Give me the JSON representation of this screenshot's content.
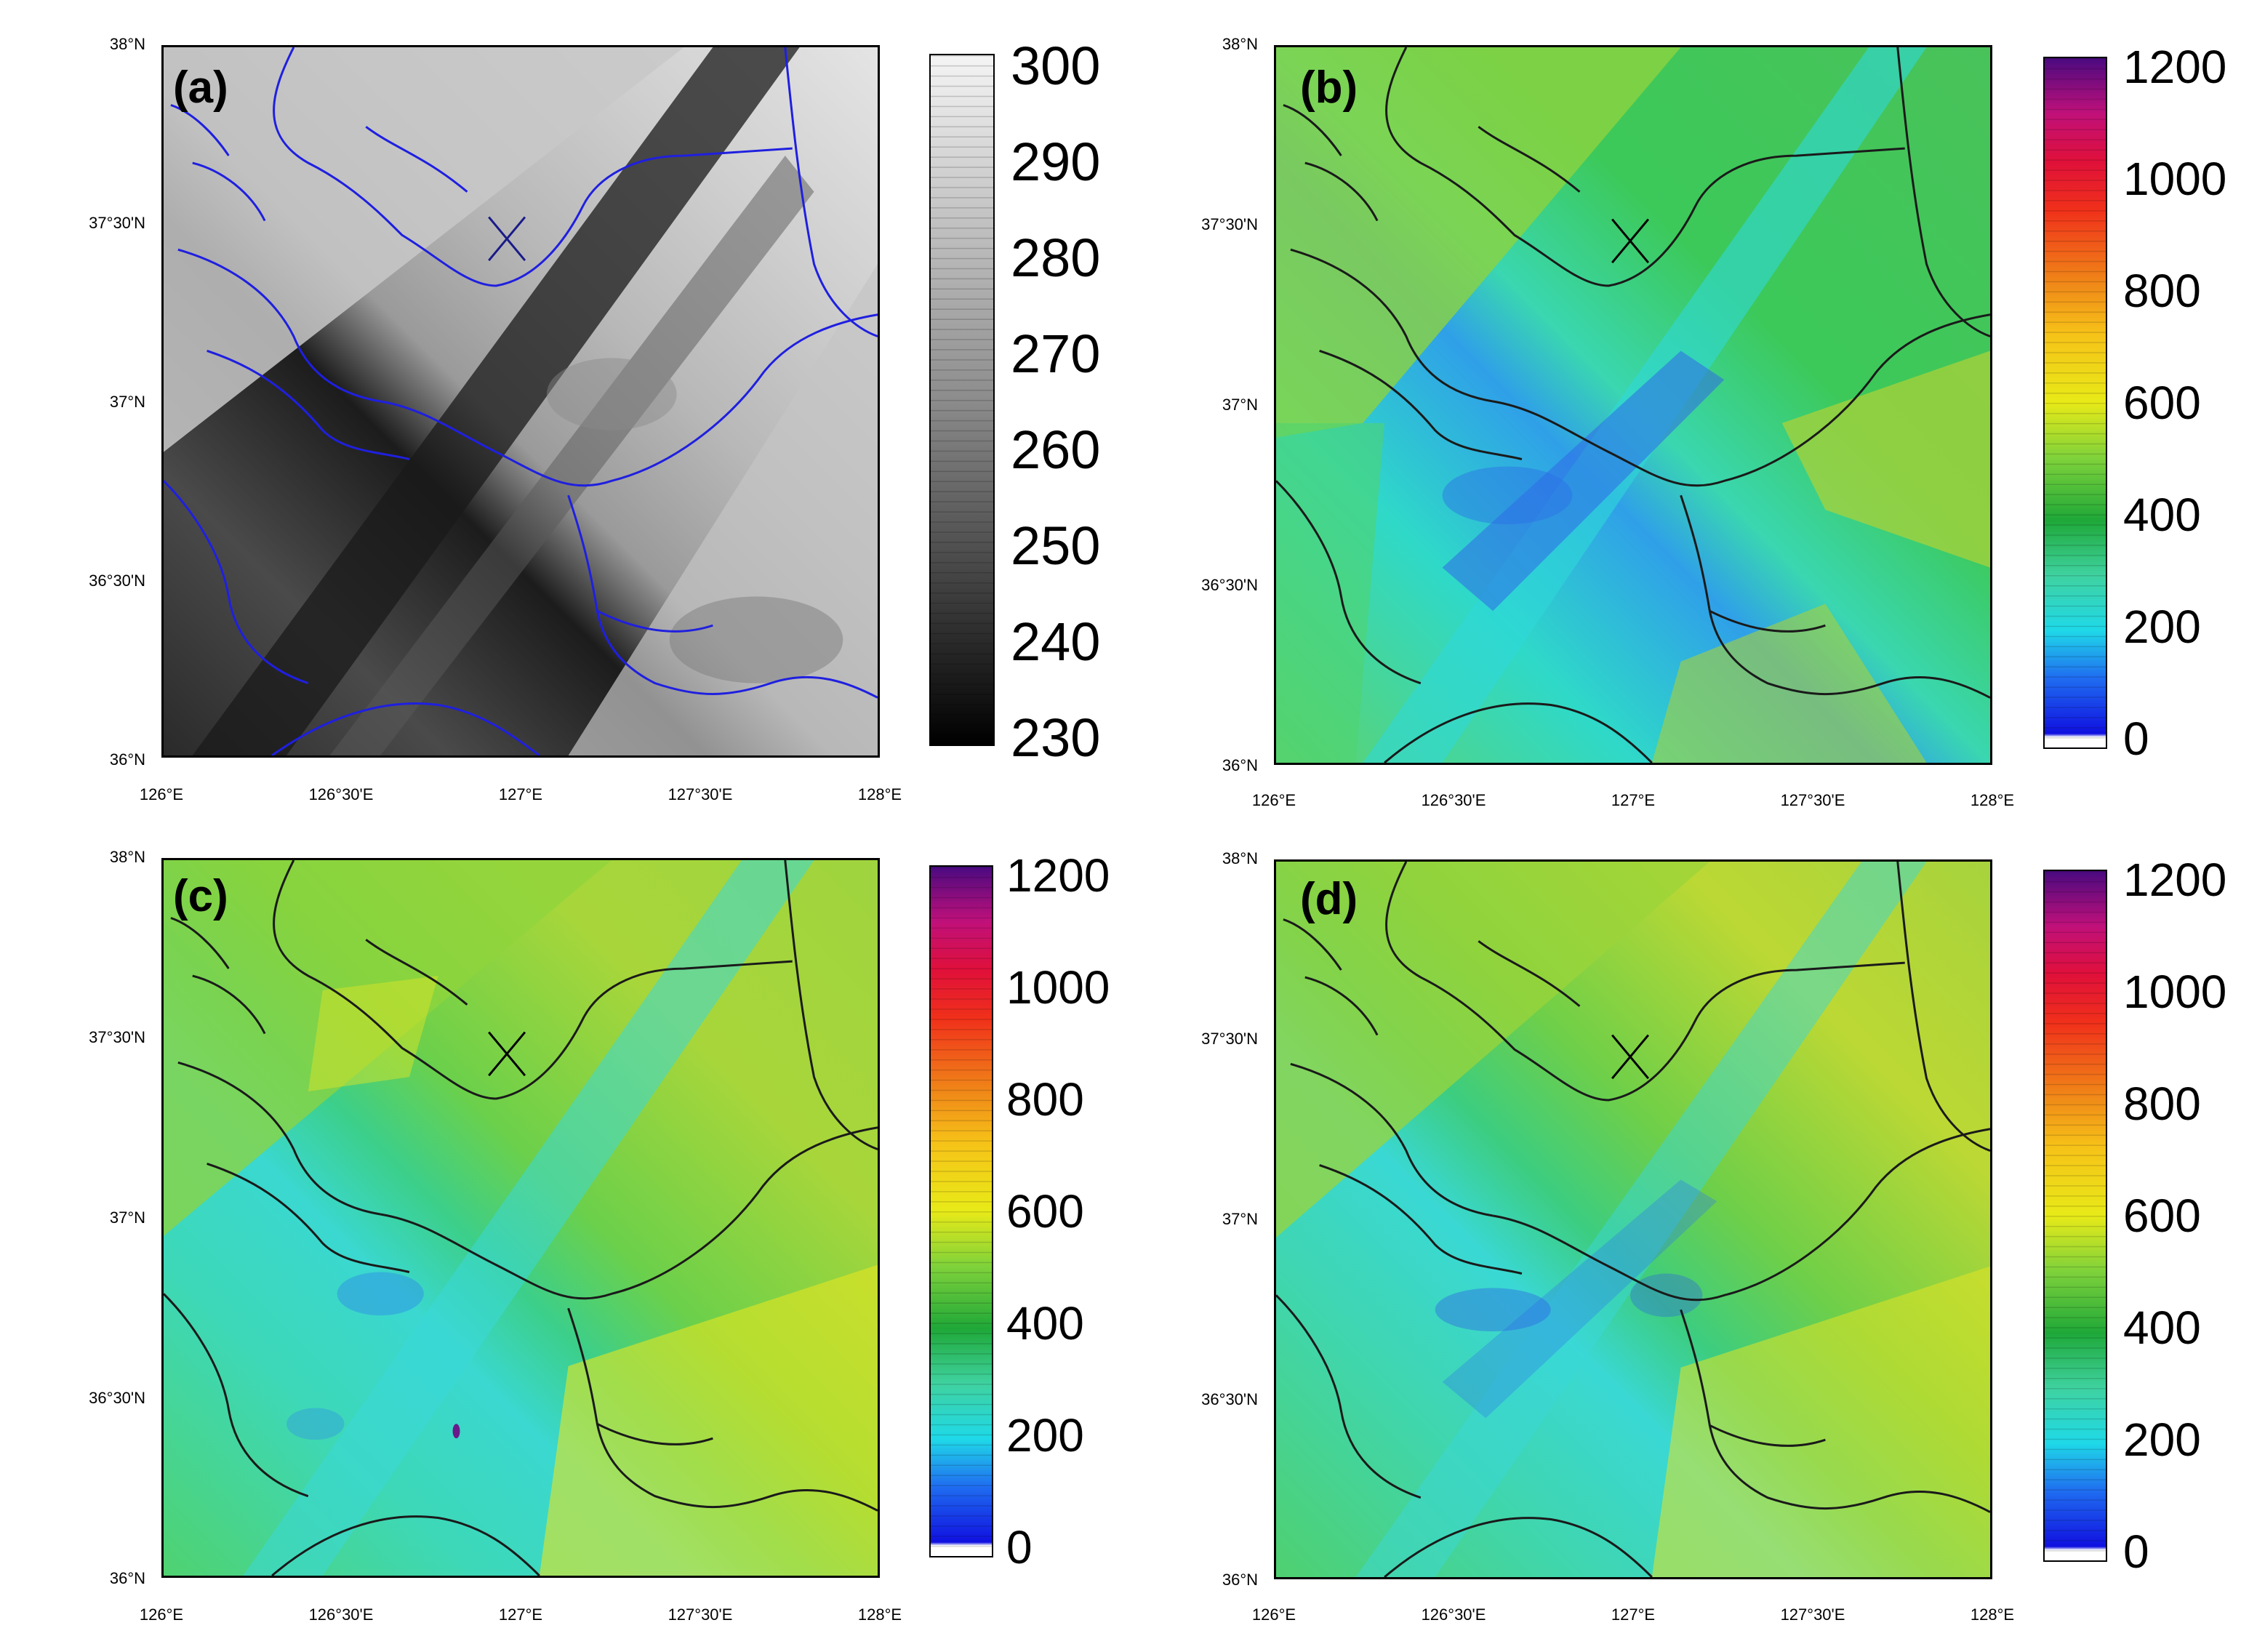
{
  "figure": {
    "panels": [
      {
        "id": "a",
        "letter": "(a)",
        "colormap": "gray",
        "colorbar_labels": [
          "300",
          "290",
          "280",
          "270",
          "260",
          "250",
          "240",
          "230"
        ],
        "station_marker": "x-mark"
      },
      {
        "id": "b",
        "letter": "(b)",
        "colormap": "rainbow",
        "colorbar_labels": [
          "1200",
          "1000",
          "800",
          "600",
          "400",
          "200",
          "0"
        ],
        "station_marker": "x-mark"
      },
      {
        "id": "c",
        "letter": "(c)",
        "colormap": "rainbow",
        "colorbar_labels": [
          "1200",
          "1000",
          "800",
          "600",
          "400",
          "200",
          "0"
        ],
        "station_marker": "x-mark"
      },
      {
        "id": "d",
        "letter": "(d)",
        "colormap": "rainbow",
        "colorbar_labels": [
          "1200",
          "1000",
          "800",
          "600",
          "400",
          "200",
          "0"
        ],
        "station_marker": "x-mark"
      }
    ],
    "lat_ticks": [
      "38°N",
      "37°30'N",
      "37°N",
      "36°30'N",
      "36°N"
    ],
    "lon_ticks": [
      "126°E",
      "126°30'E",
      "127°E",
      "127°30'E",
      "128°E"
    ],
    "colors": {
      "boundary_a": "#1f1fe0",
      "boundary_bcd": "#1a1a1a",
      "marker": "#000000"
    }
  }
}
